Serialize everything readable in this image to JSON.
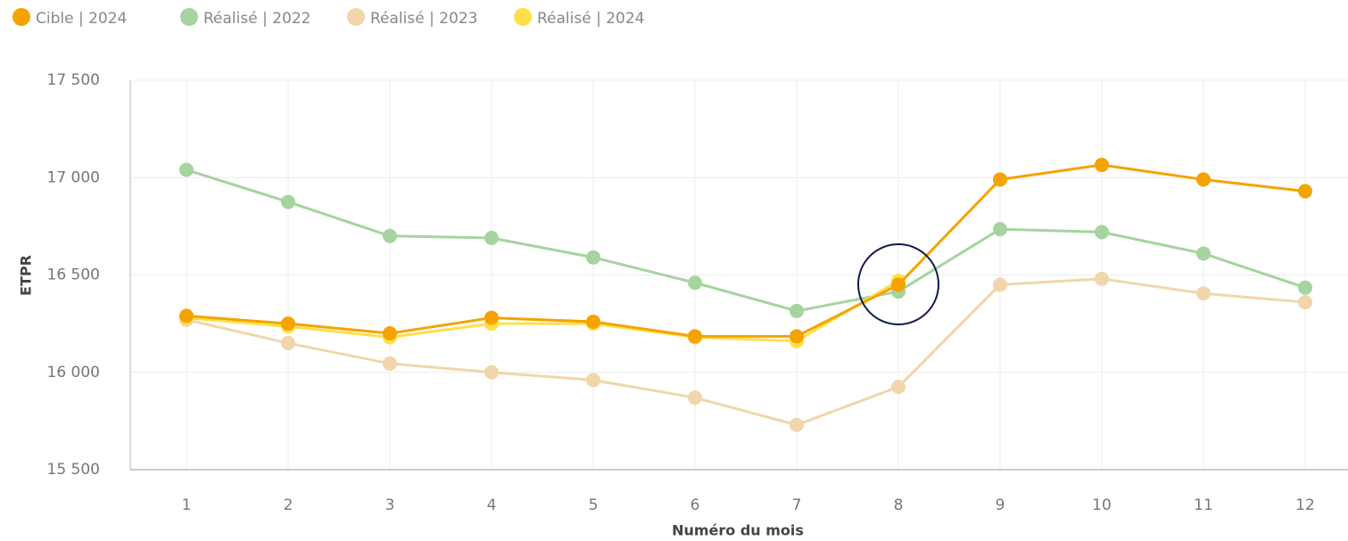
{
  "chart_data": {
    "type": "line",
    "categories": [
      "1",
      "2",
      "3",
      "4",
      "5",
      "6",
      "7",
      "8",
      "9",
      "10",
      "11",
      "12"
    ],
    "x_label": "Numéro du mois",
    "y_label": "ETPR",
    "ylim": [
      15500,
      17500
    ],
    "yticks": [
      {
        "value": 15500,
        "label": "15 500"
      },
      {
        "value": 16000,
        "label": "16 000"
      },
      {
        "value": 16500,
        "label": "16 500"
      },
      {
        "value": 17000,
        "label": "17 000"
      },
      {
        "value": 17500,
        "label": "17 500"
      }
    ],
    "grid": true,
    "legend": "top-left",
    "series": [
      {
        "name": "Cible | 2024",
        "color": "#f5a300",
        "values": [
          16290,
          16250,
          16200,
          16280,
          16260,
          16185,
          16185,
          16450,
          16990,
          17065,
          16990,
          16930
        ]
      },
      {
        "name": "Réalisé | 2022",
        "color": "#a5d49e",
        "values": [
          17040,
          16875,
          16700,
          16690,
          16590,
          16460,
          16315,
          16415,
          16735,
          16720,
          16610,
          16435
        ]
      },
      {
        "name": "Réalisé | 2023",
        "color": "#f0d6aa",
        "values": [
          16270,
          16150,
          16045,
          16000,
          15960,
          15870,
          15730,
          15925,
          16450,
          16480,
          16405,
          16360
        ]
      },
      {
        "name": "Réalisé | 2024",
        "color": "#ffdf4a",
        "values": [
          16280,
          16235,
          16180,
          16250,
          16250,
          16180,
          16160,
          16470,
          null,
          null,
          null,
          null
        ]
      }
    ]
  }
}
